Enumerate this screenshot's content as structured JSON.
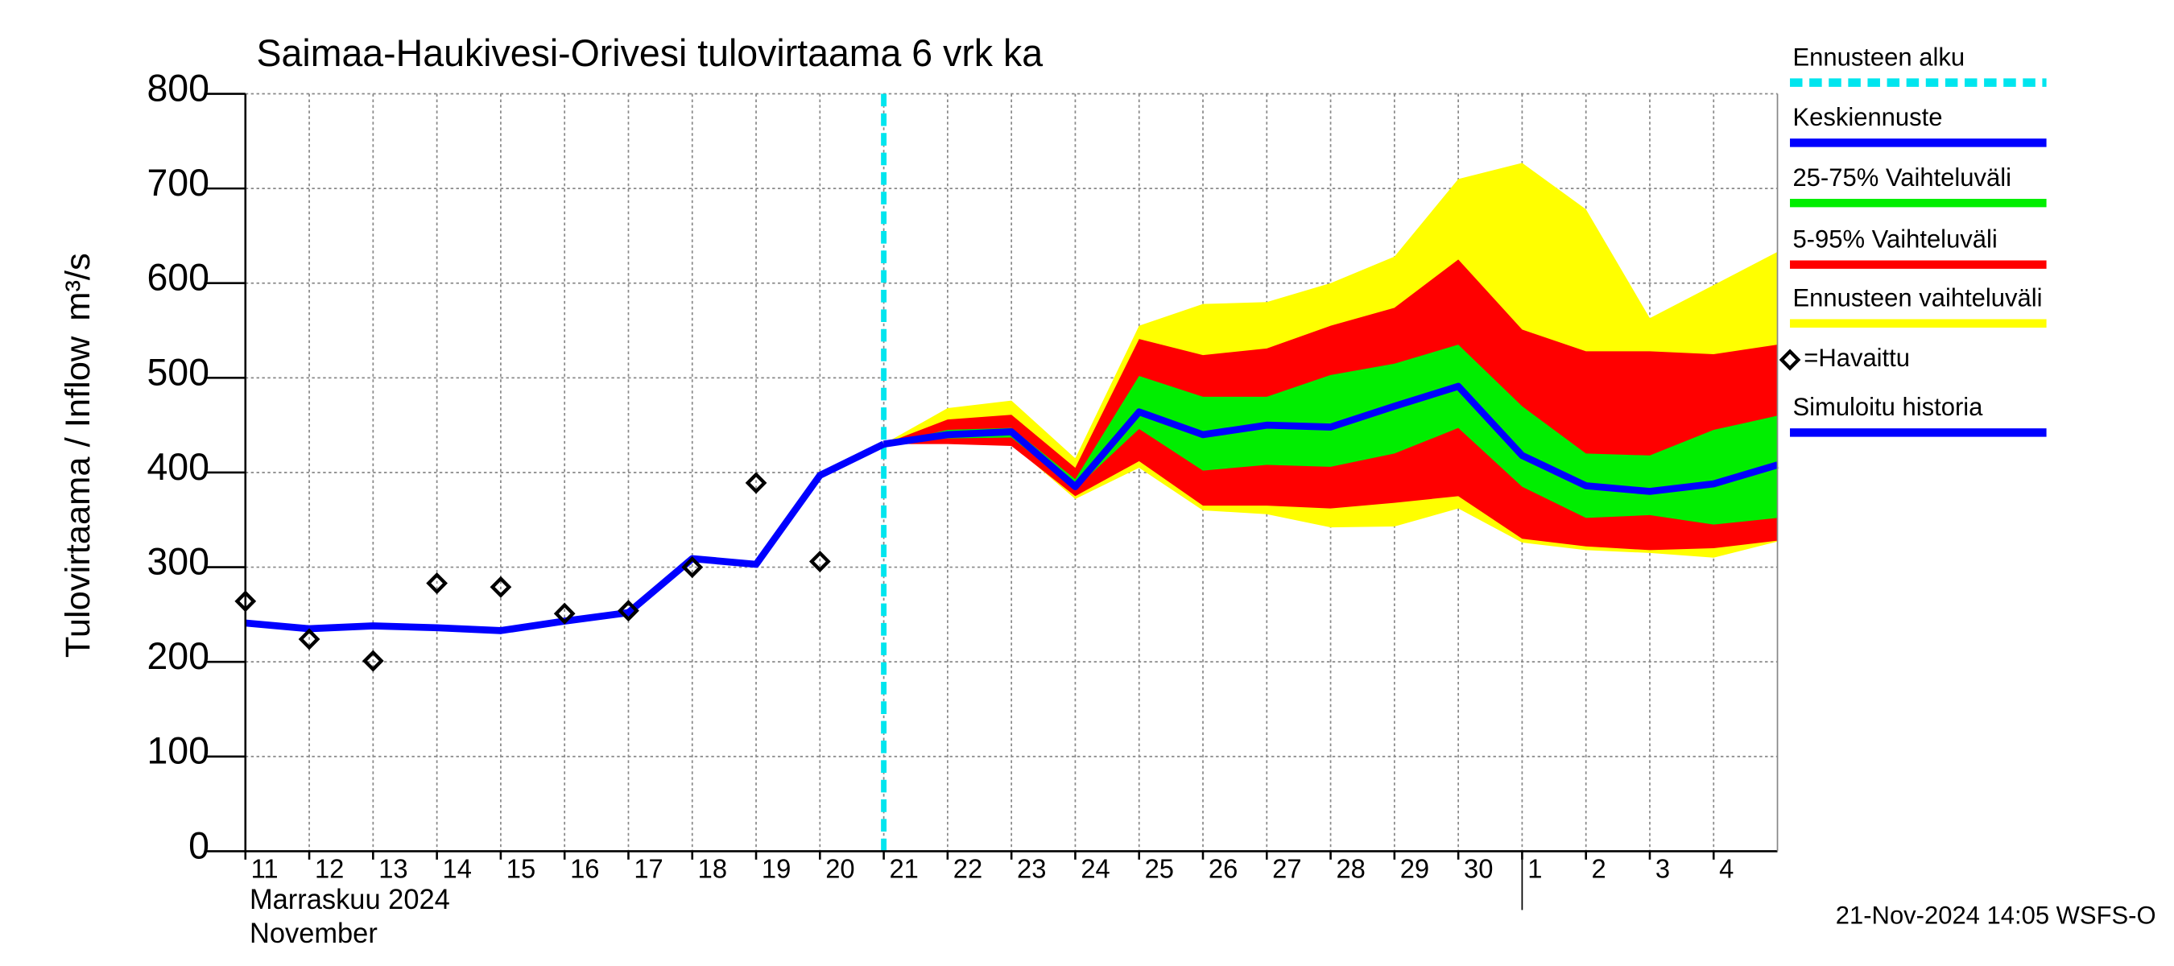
{
  "chart_data": {
    "type": "line",
    "title": "Saimaa-Haukivesi-Orivesi tulovirtaama  6 vrk ka",
    "y_label": "Tulovirtaama / Inflow",
    "unit_label": "m³/s",
    "month_label": "Marraskuu 2024",
    "month_label_en": "November",
    "timestamp": "21-Nov-2024 14:05 WSFS-O",
    "categories": [
      "11",
      "12",
      "13",
      "14",
      "15",
      "16",
      "17",
      "18",
      "19",
      "20",
      "21",
      "22",
      "23",
      "24",
      "25",
      "26",
      "27",
      "28",
      "29",
      "30",
      "1",
      "2",
      "3",
      "4"
    ],
    "xlim": [
      0,
      24
    ],
    "ylim": [
      0,
      800
    ],
    "yticks": [
      0,
      100,
      200,
      300,
      400,
      500,
      600,
      700,
      800
    ],
    "grid": true,
    "forecast_start": {
      "name": "Ennusteen alku",
      "color": "#00e5ee",
      "x": 10
    },
    "month_break": 20,
    "bands": [
      {
        "name": "Ennusteen vaihteluväli",
        "color": "#ffff00",
        "x": [
          10,
          11,
          12,
          13,
          14,
          15,
          16,
          17,
          18,
          19,
          20,
          21,
          22,
          23,
          24
        ],
        "upper": [
          430,
          468,
          476,
          415,
          555,
          578,
          580,
          600,
          628,
          710,
          727,
          678,
          563,
          598,
          633
        ],
        "lower": [
          430,
          433,
          430,
          372,
          405,
          360,
          356,
          342,
          343,
          362,
          326,
          318,
          315,
          310,
          327
        ]
      },
      {
        "name": "5-95% Vaihteluväli",
        "color": "#ff0000",
        "x": [
          10,
          11,
          12,
          13,
          14,
          15,
          16,
          17,
          18,
          19,
          20,
          21,
          22,
          23,
          24
        ],
        "upper": [
          430,
          456,
          461,
          405,
          541,
          524,
          531,
          555,
          574,
          625,
          551,
          528,
          528,
          525,
          535
        ],
        "lower": [
          430,
          430,
          428,
          375,
          412,
          365,
          365,
          362,
          368,
          375,
          330,
          322,
          318,
          320,
          328
        ]
      },
      {
        "name": "25-75% Vaihteluväli",
        "color": "#00ee00",
        "x": [
          10,
          11,
          12,
          13,
          14,
          15,
          16,
          17,
          18,
          19,
          20,
          21,
          22,
          23,
          24
        ],
        "upper": [
          430,
          445,
          447,
          393,
          502,
          480,
          480,
          503,
          515,
          535,
          470,
          420,
          418,
          445,
          460
        ],
        "lower": [
          430,
          436,
          437,
          383,
          446,
          402,
          408,
          406,
          420,
          447,
          385,
          352,
          355,
          345,
          352
        ]
      }
    ],
    "series": [
      {
        "name": "Keskiennuste",
        "color": "#0000ff",
        "x": [
          10,
          11,
          12,
          13,
          14,
          15,
          16,
          17,
          18,
          19,
          20,
          21,
          22,
          23,
          24
        ],
        "values": [
          430,
          440,
          443,
          385,
          464,
          440,
          450,
          448,
          470,
          491,
          418,
          386,
          380,
          388,
          408
        ]
      },
      {
        "name": "Simuloitu historia",
        "color": "#0000ff",
        "x": [
          0,
          1,
          2,
          3,
          4,
          5,
          6,
          7,
          8,
          9,
          10
        ],
        "values": [
          241,
          235,
          238,
          236,
          233,
          243,
          252,
          309,
          303,
          397,
          430
        ]
      }
    ],
    "observed": {
      "name": "=Havaittu",
      "color": "#000000",
      "x": [
        0,
        1,
        2,
        3,
        4,
        5,
        6,
        7,
        8,
        9
      ],
      "values": [
        264,
        224,
        201,
        283,
        279,
        251,
        254,
        300,
        389,
        306
      ]
    }
  }
}
